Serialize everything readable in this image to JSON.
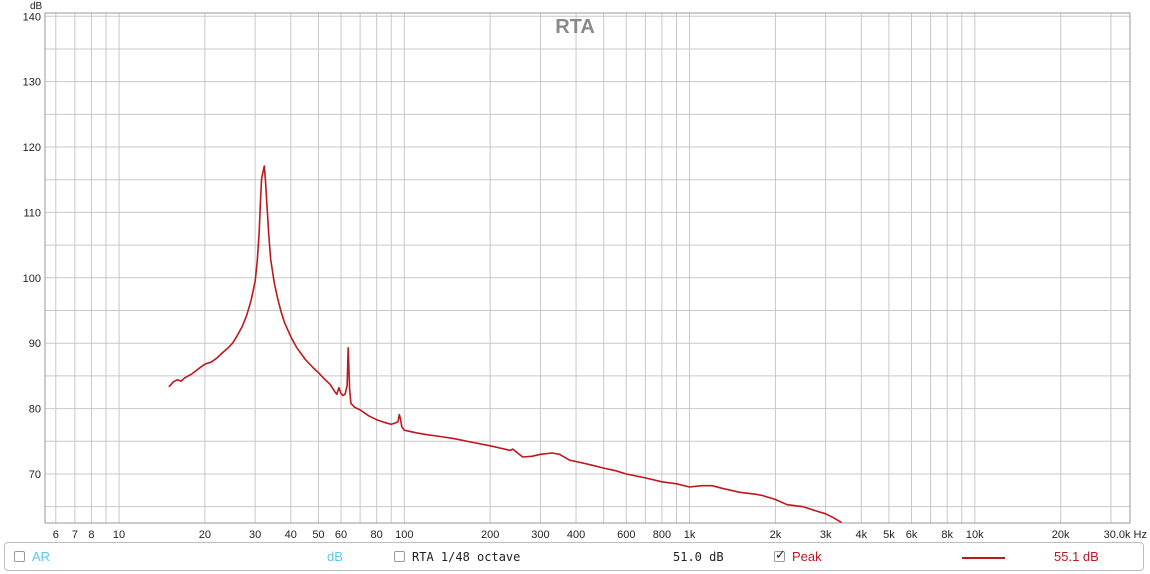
{
  "chart_data": {
    "type": "line",
    "title": "RTA",
    "ylabel": "dB",
    "xlabel": "Hz",
    "x_scale": "log",
    "xlim": [
      5.5,
      35000
    ],
    "ylim": [
      62.5,
      140.5
    ],
    "grid": true,
    "y_ticks": [
      70,
      80,
      90,
      100,
      110,
      120,
      130,
      140
    ],
    "x_ticks": [
      {
        "value": 6,
        "label": "6"
      },
      {
        "value": 7,
        "label": "7"
      },
      {
        "value": 8,
        "label": "8"
      },
      {
        "value": 10,
        "label": "10"
      },
      {
        "value": 20,
        "label": "20"
      },
      {
        "value": 30,
        "label": "30"
      },
      {
        "value": 40,
        "label": "40"
      },
      {
        "value": 50,
        "label": "50"
      },
      {
        "value": 60,
        "label": "60"
      },
      {
        "value": 80,
        "label": "80"
      },
      {
        "value": 100,
        "label": "100"
      },
      {
        "value": 200,
        "label": "200"
      },
      {
        "value": 300,
        "label": "300"
      },
      {
        "value": 400,
        "label": "400"
      },
      {
        "value": 600,
        "label": "600"
      },
      {
        "value": 800,
        "label": "800"
      },
      {
        "value": 1000,
        "label": "1k"
      },
      {
        "value": 2000,
        "label": "2k"
      },
      {
        "value": 3000,
        "label": "3k"
      },
      {
        "value": 4000,
        "label": "4k"
      },
      {
        "value": 5000,
        "label": "5k"
      },
      {
        "value": 6000,
        "label": "6k"
      },
      {
        "value": 8000,
        "label": "8k"
      },
      {
        "value": 10000,
        "label": "10k"
      },
      {
        "value": 20000,
        "label": "20k"
      },
      {
        "value": 30000,
        "label": "30.0k Hz"
      }
    ],
    "series": [
      {
        "name": "Peak",
        "color": "#c0171c",
        "points": [
          [
            15,
            83.4
          ],
          [
            15.5,
            84.1
          ],
          [
            16,
            84.4
          ],
          [
            16.5,
            84.2
          ],
          [
            17,
            84.7
          ],
          [
            18,
            85.3
          ],
          [
            19,
            86.1
          ],
          [
            20,
            86.8
          ],
          [
            21,
            87.1
          ],
          [
            22,
            87.7
          ],
          [
            23,
            88.5
          ],
          [
            24,
            89.2
          ],
          [
            25,
            90.0
          ],
          [
            26,
            91.2
          ],
          [
            27,
            92.5
          ],
          [
            28,
            94.2
          ],
          [
            29,
            96.5
          ],
          [
            30,
            99.5
          ],
          [
            30.5,
            102.5
          ],
          [
            31,
            107.0
          ],
          [
            31.3,
            111.5
          ],
          [
            31.6,
            115.2
          ],
          [
            32,
            116.3
          ],
          [
            32.3,
            117.1
          ],
          [
            32.6,
            114.8
          ],
          [
            33,
            111.0
          ],
          [
            33.5,
            106.5
          ],
          [
            34,
            102.8
          ],
          [
            35,
            99.2
          ],
          [
            36,
            96.8
          ],
          [
            37,
            94.8
          ],
          [
            38,
            93.2
          ],
          [
            40,
            91.0
          ],
          [
            42,
            89.3
          ],
          [
            45,
            87.5
          ],
          [
            48,
            86.2
          ],
          [
            50,
            85.5
          ],
          [
            52,
            84.7
          ],
          [
            55,
            83.7
          ],
          [
            57,
            82.6
          ],
          [
            58,
            82.2
          ],
          [
            59,
            83.2
          ],
          [
            60,
            82.3
          ],
          [
            61,
            82.0
          ],
          [
            62,
            82.2
          ],
          [
            63,
            83.5
          ],
          [
            63.6,
            89.3
          ],
          [
            64.3,
            83.0
          ],
          [
            65,
            80.8
          ],
          [
            67,
            80.2
          ],
          [
            70,
            79.8
          ],
          [
            75,
            78.9
          ],
          [
            80,
            78.3
          ],
          [
            85,
            77.9
          ],
          [
            90,
            77.6
          ],
          [
            93,
            77.8
          ],
          [
            95,
            78.0
          ],
          [
            96,
            79.1
          ],
          [
            97,
            78.4
          ],
          [
            98,
            77.2
          ],
          [
            100,
            76.7
          ],
          [
            110,
            76.3
          ],
          [
            120,
            76.0
          ],
          [
            130,
            75.8
          ],
          [
            150,
            75.4
          ],
          [
            170,
            74.9
          ],
          [
            200,
            74.3
          ],
          [
            220,
            73.9
          ],
          [
            235,
            73.6
          ],
          [
            240,
            73.8
          ],
          [
            245,
            73.5
          ],
          [
            260,
            72.6
          ],
          [
            280,
            72.7
          ],
          [
            300,
            73.0
          ],
          [
            330,
            73.2
          ],
          [
            350,
            73.0
          ],
          [
            380,
            72.1
          ],
          [
            400,
            71.9
          ],
          [
            450,
            71.4
          ],
          [
            500,
            70.9
          ],
          [
            550,
            70.5
          ],
          [
            600,
            70.0
          ],
          [
            700,
            69.4
          ],
          [
            800,
            68.8
          ],
          [
            900,
            68.5
          ],
          [
            1000,
            68.0
          ],
          [
            1100,
            68.2
          ],
          [
            1200,
            68.2
          ],
          [
            1300,
            67.8
          ],
          [
            1500,
            67.2
          ],
          [
            1700,
            66.9
          ],
          [
            1800,
            66.7
          ],
          [
            2000,
            66.1
          ],
          [
            2200,
            65.3
          ],
          [
            2500,
            65.0
          ],
          [
            2800,
            64.3
          ],
          [
            3000,
            63.9
          ],
          [
            3200,
            63.3
          ],
          [
            3400,
            62.6
          ]
        ]
      }
    ]
  },
  "legend": {
    "ar_label": "AR",
    "units_label": "dB",
    "rta_label": "RTA 1/48 octave",
    "rta_value": "51.0 dB",
    "peak_label": "Peak",
    "peak_value": "55.1 dB",
    "ar_checked": false,
    "rta_checked": false,
    "peak_checked": true
  },
  "colors": {
    "series": "#c0171c",
    "ar_text": "#5bc8ec",
    "grid": "#c8c8c8",
    "title": "#8a8a8a"
  }
}
